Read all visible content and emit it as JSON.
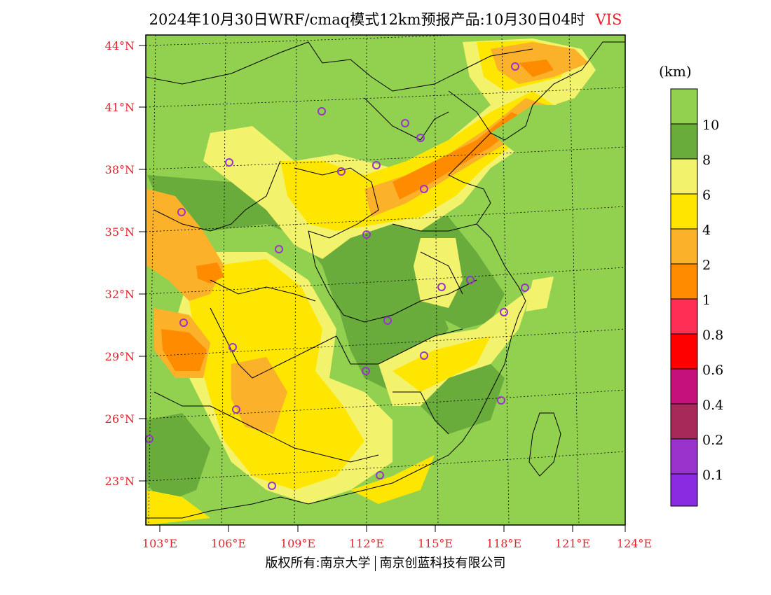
{
  "header": {
    "title": "2024年10月30日WRF/cmaq模式12km预报产品:10月30日04时",
    "variable": "VIS"
  },
  "legend": {
    "unit": "(km)",
    "levels": [
      "10",
      "8",
      "6",
      "4",
      "2",
      "1",
      "0.8",
      "0.6",
      "0.4",
      "0.2",
      "0.1"
    ],
    "colors": [
      "#92d050",
      "#6aac3c",
      "#f2f26c",
      "#ffe600",
      "#fbb12a",
      "#ff8c00",
      "#ff2e55",
      "#ff0000",
      "#c4127a",
      "#a52a5a",
      "#9933cc",
      "#8a2be2"
    ]
  },
  "axes": {
    "lat_labels": [
      "44°N",
      "41°N",
      "38°N",
      "35°N",
      "32°N",
      "29°N",
      "26°N",
      "23°N"
    ],
    "lon_labels": [
      "103°E",
      "106°E",
      "109°E",
      "112°E",
      "115°E",
      "118°E",
      "121°E",
      "124°E"
    ],
    "label_color": "#e8202a"
  },
  "footer": {
    "left": "版权所有:南京大学",
    "right": "南京创蓝科技有限公司"
  },
  "colors": {
    "land_base": "#92d050",
    "border": "#000000"
  }
}
